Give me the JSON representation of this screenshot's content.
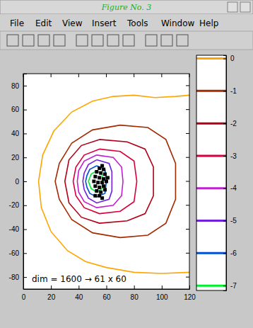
{
  "window": {
    "title": "Figure No. 3",
    "menu": [
      "File",
      "Edit",
      "View",
      "Insert",
      "Tools",
      "Window",
      "Help"
    ]
  },
  "chart_data": {
    "type": "contour",
    "xlim": [
      0,
      120
    ],
    "ylim": [
      -90,
      90
    ],
    "xticks": [
      0,
      20,
      40,
      60,
      80,
      100,
      120
    ],
    "yticks": [
      -80,
      -60,
      -40,
      -20,
      0,
      20,
      40,
      60,
      80
    ],
    "annotation": "dim = 1600 → 61 x 60",
    "colorbar": {
      "ylim": [
        -7.15,
        0.1
      ],
      "yticks": [
        0,
        -1,
        -2,
        -3,
        -4,
        -5,
        -6,
        -7
      ]
    },
    "series": [
      {
        "level": 0,
        "color": "#ffa500",
        "x": [
          120,
          110,
          95,
          80,
          65,
          50,
          35,
          22,
          14,
          11,
          13,
          20,
          32,
          45,
          60,
          80,
          100,
          120
        ],
        "y": [
          72,
          71,
          70,
          72,
          71,
          67,
          58,
          42,
          22,
          0,
          -22,
          -42,
          -58,
          -67,
          -72,
          -76,
          -77,
          -76
        ]
      },
      {
        "level": -1,
        "color": "#a52a00",
        "x": [
          70,
          90,
          103,
          110,
          110,
          103,
          90,
          70,
          50,
          35,
          26,
          23,
          26,
          35,
          50,
          70
        ],
        "y": [
          47,
          45,
          35,
          15,
          -15,
          -35,
          -45,
          -47,
          -43,
          -32,
          -15,
          0,
          15,
          32,
          43,
          47
        ]
      },
      {
        "level": -2,
        "color": "#b00018",
        "x": [
          55,
          75,
          88,
          94,
          94,
          88,
          75,
          55,
          42,
          33,
          30,
          33,
          42,
          55
        ],
        "y": [
          35,
          33,
          27,
          12,
          -12,
          -27,
          -33,
          -35,
          -30,
          -18,
          0,
          18,
          30,
          35
        ]
      },
      {
        "level": -3,
        "color": "#d8003c",
        "x": [
          55,
          70,
          80,
          82,
          80,
          70,
          55,
          44,
          38,
          36,
          38,
          44,
          55
        ],
        "y": [
          27,
          25,
          17,
          0,
          -17,
          -25,
          -27,
          -22,
          -12,
          0,
          12,
          22,
          27
        ]
      },
      {
        "level": -4,
        "color": "#c020d0",
        "x": [
          53,
          65,
          71,
          72,
          71,
          65,
          53,
          44,
          40,
          39,
          40,
          44,
          53
        ],
        "y": [
          22,
          20,
          12,
          0,
          -12,
          -20,
          -22,
          -17,
          -9,
          0,
          9,
          17,
          22
        ]
      },
      {
        "level": -5,
        "color": "#7020e0",
        "x": [
          53,
          62,
          64,
          64,
          62,
          53,
          47,
          44,
          43,
          44,
          47,
          53
        ],
        "y": [
          18,
          15,
          8,
          -8,
          -15,
          -18,
          -14,
          -7,
          0,
          7,
          14,
          18
        ]
      },
      {
        "level": -6,
        "color": "#0050d0",
        "x": [
          53,
          59,
          60,
          59,
          53,
          48,
          46,
          45,
          46,
          48,
          53
        ],
        "y": [
          13,
          10,
          0,
          -10,
          -13,
          -10,
          -5,
          0,
          5,
          10,
          13
        ]
      },
      {
        "level": -7,
        "color": "#00f030",
        "x": [
          53,
          57,
          57,
          53,
          49,
          47,
          49,
          53
        ],
        "y": [
          9,
          6,
          -6,
          -9,
          -6,
          0,
          6,
          9
        ]
      },
      {
        "type": "scatter",
        "color": "#000000",
        "marker": "square",
        "x": [
          57,
          55,
          58,
          53,
          56,
          59,
          52,
          55,
          58,
          61,
          51,
          54,
          57,
          60,
          52,
          55,
          58,
          53,
          56,
          59,
          55,
          57,
          52
        ],
        "y": [
          13,
          11,
          10,
          8,
          7,
          6,
          4,
          3,
          2,
          3,
          0,
          -1,
          -1,
          0,
          -4,
          -5,
          -4,
          -8,
          -9,
          -7,
          -12,
          -14,
          -12
        ]
      }
    ]
  }
}
